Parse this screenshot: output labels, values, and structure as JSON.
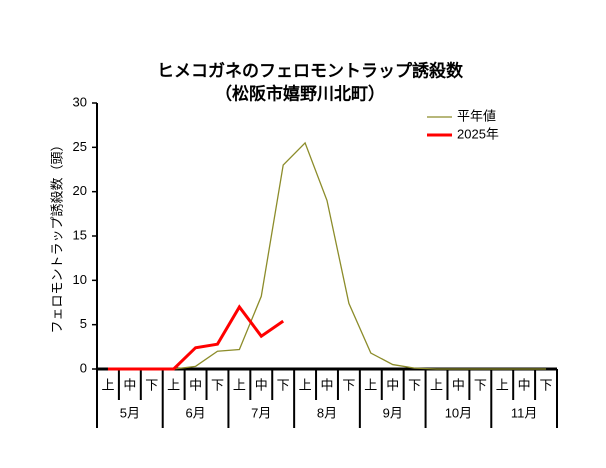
{
  "chart_data": {
    "type": "line",
    "title": "ヒメコガネのフェロモントラップ誘殺数",
    "subtitle": "（松阪市嬉野川北町）",
    "y_label": "フェロモントラップ誘殺数（頭）",
    "categories": [
      "上",
      "中",
      "下",
      "上",
      "中",
      "下",
      "上",
      "中",
      "下",
      "上",
      "中",
      "下",
      "上",
      "中",
      "下",
      "上",
      "中",
      "下",
      "上",
      "中",
      "下"
    ],
    "months": [
      "5月",
      "6月",
      "7月",
      "8月",
      "9月",
      "10月",
      "11月"
    ],
    "series": [
      {
        "name": "平年値",
        "color": "#8c8c2a",
        "values": [
          0,
          0,
          0,
          0,
          0.3,
          2.0,
          2.2,
          8.2,
          23,
          25.5,
          19,
          7.4,
          1.8,
          0.5,
          0.1,
          0,
          0,
          0,
          0,
          0,
          0
        ]
      },
      {
        "name": "2025年",
        "color": "#ff0000",
        "values": [
          0,
          0,
          0,
          0,
          2.4,
          2.8,
          7.0,
          3.7,
          5.4,
          null,
          null,
          null,
          null,
          null,
          null,
          null,
          null,
          null,
          null,
          null,
          null
        ]
      }
    ],
    "ylim": [
      0,
      30
    ],
    "yticks": [
      0,
      5,
      10,
      15,
      20,
      25,
      30
    ],
    "legend": "upper-right"
  }
}
